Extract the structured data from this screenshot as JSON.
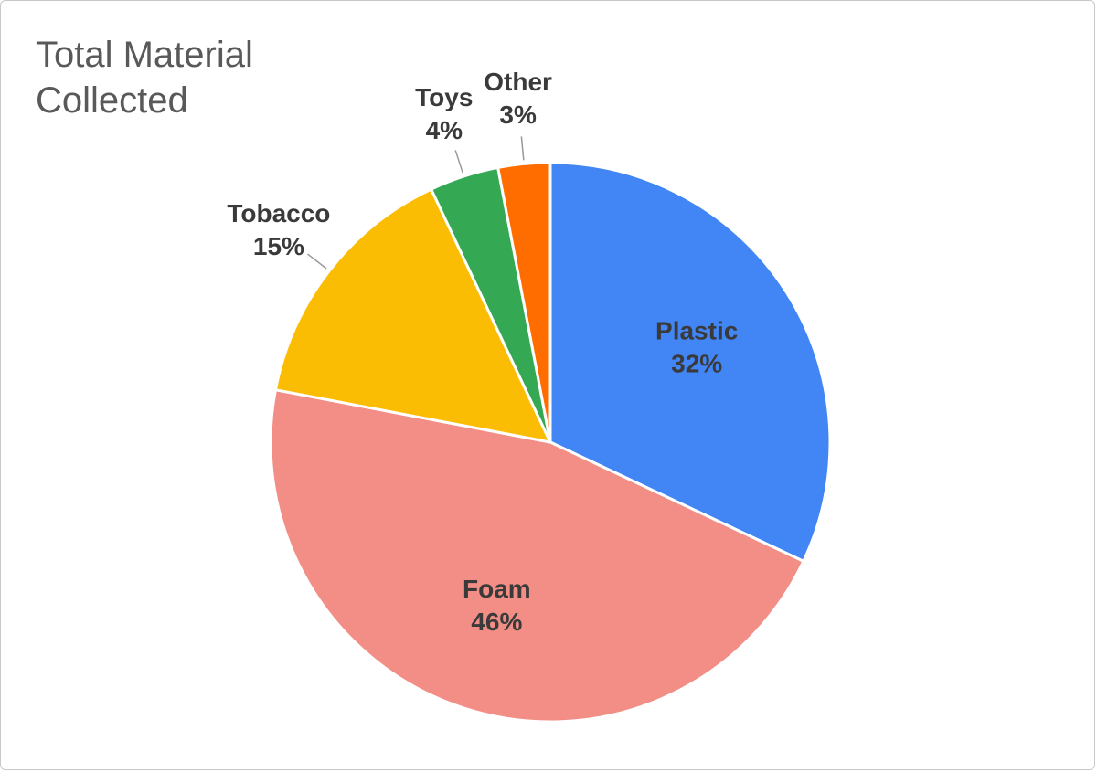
{
  "chart_data": {
    "type": "pie",
    "title": "Total Material Collected",
    "categories": [
      "Plastic",
      "Foam",
      "Tobacco",
      "Toys",
      "Other"
    ],
    "values": [
      32,
      46,
      15,
      4,
      3
    ],
    "value_labels": [
      "32%",
      "46%",
      "15%",
      "4%",
      "3%"
    ],
    "colors": [
      "#4285f4",
      "#f28e86",
      "#fbbc04",
      "#34a853",
      "#ff6d01"
    ]
  }
}
